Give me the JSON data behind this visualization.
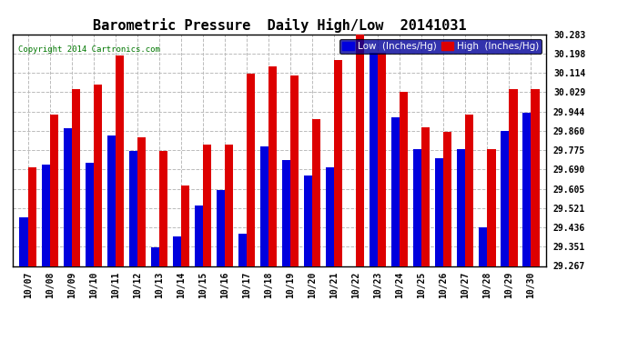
{
  "title": "Barometric Pressure  Daily High/Low  20141031",
  "copyright": "Copyright 2014 Cartronics.com",
  "legend_low": "Low  (Inches/Hg)",
  "legend_high": "High  (Inches/Hg)",
  "low_color": "#0000DD",
  "high_color": "#DD0000",
  "bg_color": "#FFFFFF",
  "plot_bg_color": "#FFFFFF",
  "ylim_min": 29.267,
  "ylim_max": 30.283,
  "yticks": [
    29.267,
    29.351,
    29.436,
    29.521,
    29.605,
    29.69,
    29.775,
    29.86,
    29.944,
    30.029,
    30.114,
    30.198,
    30.283
  ],
  "dates": [
    "10/07",
    "10/08",
    "10/09",
    "10/10",
    "10/11",
    "10/12",
    "10/13",
    "10/14",
    "10/15",
    "10/16",
    "10/17",
    "10/18",
    "10/19",
    "10/20",
    "10/21",
    "10/22",
    "10/23",
    "10/24",
    "10/25",
    "10/26",
    "10/27",
    "10/28",
    "10/29",
    "10/30"
  ],
  "low_values": [
    29.48,
    29.71,
    29.87,
    29.72,
    29.84,
    29.77,
    29.35,
    29.395,
    29.53,
    29.6,
    29.41,
    29.79,
    29.73,
    29.665,
    29.7,
    29.267,
    30.2,
    29.92,
    29.78,
    29.74,
    29.78,
    29.436,
    29.86,
    29.94
  ],
  "high_values": [
    29.7,
    29.93,
    30.04,
    30.06,
    30.19,
    29.83,
    29.77,
    29.62,
    29.8,
    29.8,
    30.11,
    30.14,
    30.1,
    29.91,
    30.17,
    30.283,
    30.2,
    30.03,
    29.875,
    29.855,
    29.93,
    29.78,
    30.04,
    30.04
  ],
  "bar_width": 0.38,
  "grid_color": "#BBBBBB",
  "title_fontsize": 11,
  "tick_fontsize": 7,
  "legend_fontsize": 7.5
}
